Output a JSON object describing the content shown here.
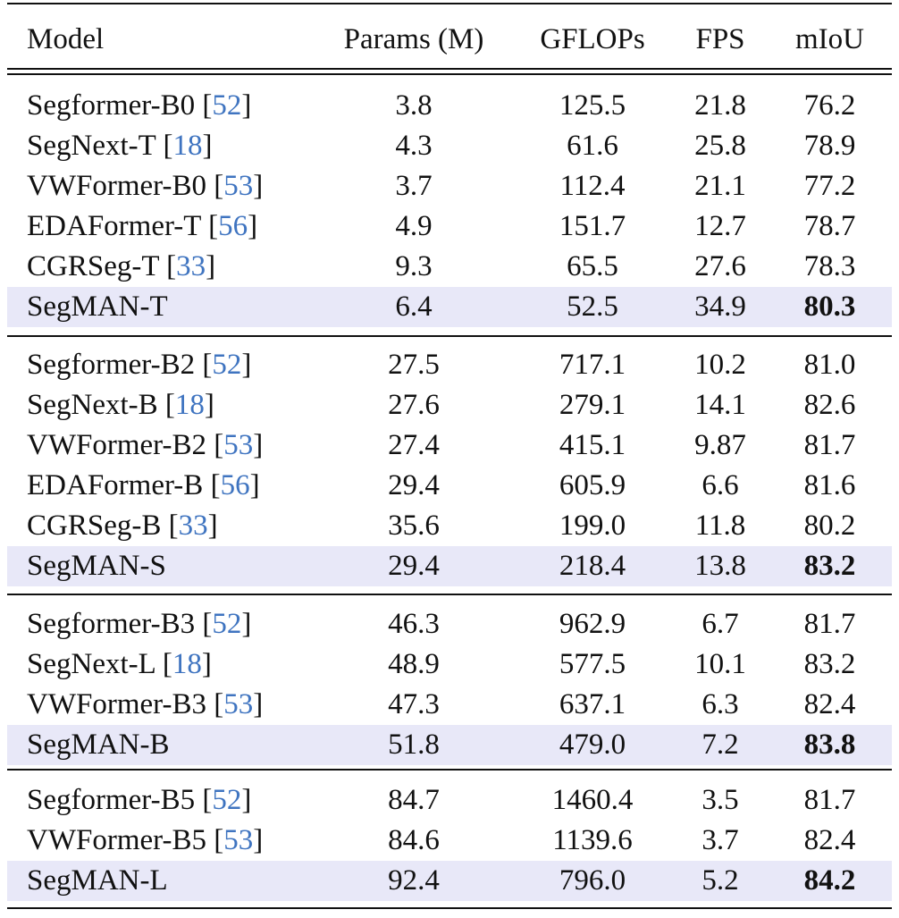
{
  "header": {
    "model": "Model",
    "params": "Params (M)",
    "gflops": "GFLOPs",
    "fps": "FPS",
    "miou": "mIoU"
  },
  "groups": [
    [
      {
        "model": "Segformer-B0",
        "ref": "52",
        "params": "3.8",
        "gflops": "125.5",
        "fps": "21.8",
        "miou": "76.2"
      },
      {
        "model": "SegNext-T",
        "ref": "18",
        "params": "4.3",
        "gflops": "61.6",
        "fps": "25.8",
        "miou": "78.9"
      },
      {
        "model": "VWFormer-B0",
        "ref": "53",
        "params": "3.7",
        "gflops": "112.4",
        "fps": "21.1",
        "miou": "77.2"
      },
      {
        "model": "EDAFormer-T",
        "ref": "56",
        "params": "4.9",
        "gflops": "151.7",
        "fps": "12.7",
        "miou": "78.7"
      },
      {
        "model": "CGRSeg-T",
        "ref": "33",
        "params": "9.3",
        "gflops": "65.5",
        "fps": "27.6",
        "miou": "78.3"
      },
      {
        "model": "SegMAN-T",
        "ref": "",
        "params": "6.4",
        "gflops": "52.5",
        "fps": "34.9",
        "miou": "80.3",
        "highlight": true
      }
    ],
    [
      {
        "model": "Segformer-B2",
        "ref": "52",
        "params": "27.5",
        "gflops": "717.1",
        "fps": "10.2",
        "miou": "81.0"
      },
      {
        "model": "SegNext-B",
        "ref": "18",
        "params": "27.6",
        "gflops": "279.1",
        "fps": "14.1",
        "miou": "82.6"
      },
      {
        "model": "VWFormer-B2",
        "ref": "53",
        "params": "27.4",
        "gflops": "415.1",
        "fps": "9.87",
        "miou": "81.7"
      },
      {
        "model": "EDAFormer-B",
        "ref": "56",
        "params": "29.4",
        "gflops": "605.9",
        "fps": "6.6",
        "miou": "81.6"
      },
      {
        "model": "CGRSeg-B",
        "ref": "33",
        "params": "35.6",
        "gflops": "199.0",
        "fps": "11.8",
        "miou": "80.2"
      },
      {
        "model": "SegMAN-S",
        "ref": "",
        "params": "29.4",
        "gflops": "218.4",
        "fps": "13.8",
        "miou": "83.2",
        "highlight": true
      }
    ],
    [
      {
        "model": "Segformer-B3",
        "ref": "52",
        "params": "46.3",
        "gflops": "962.9",
        "fps": "6.7",
        "miou": "81.7"
      },
      {
        "model": "SegNext-L",
        "ref": "18",
        "params": "48.9",
        "gflops": "577.5",
        "fps": "10.1",
        "miou": "83.2"
      },
      {
        "model": "VWFormer-B3",
        "ref": "53",
        "params": "47.3",
        "gflops": "637.1",
        "fps": "6.3",
        "miou": "82.4"
      },
      {
        "model": "SegMAN-B",
        "ref": "",
        "params": "51.8",
        "gflops": "479.0",
        "fps": "7.2",
        "miou": "83.8",
        "highlight": true
      }
    ],
    [
      {
        "model": "Segformer-B5",
        "ref": "52",
        "params": "84.7",
        "gflops": "1460.4",
        "fps": "3.5",
        "miou": "81.7"
      },
      {
        "model": "VWFormer-B5",
        "ref": "53",
        "params": "84.6",
        "gflops": "1139.6",
        "fps": "3.7",
        "miou": "82.4"
      },
      {
        "model": "SegMAN-L",
        "ref": "",
        "params": "92.4",
        "gflops": "796.0",
        "fps": "5.2",
        "miou": "84.2",
        "highlight": true
      }
    ]
  ],
  "colors": {
    "highlight_row": "#e8e8f8",
    "citation": "#3f74c0"
  }
}
